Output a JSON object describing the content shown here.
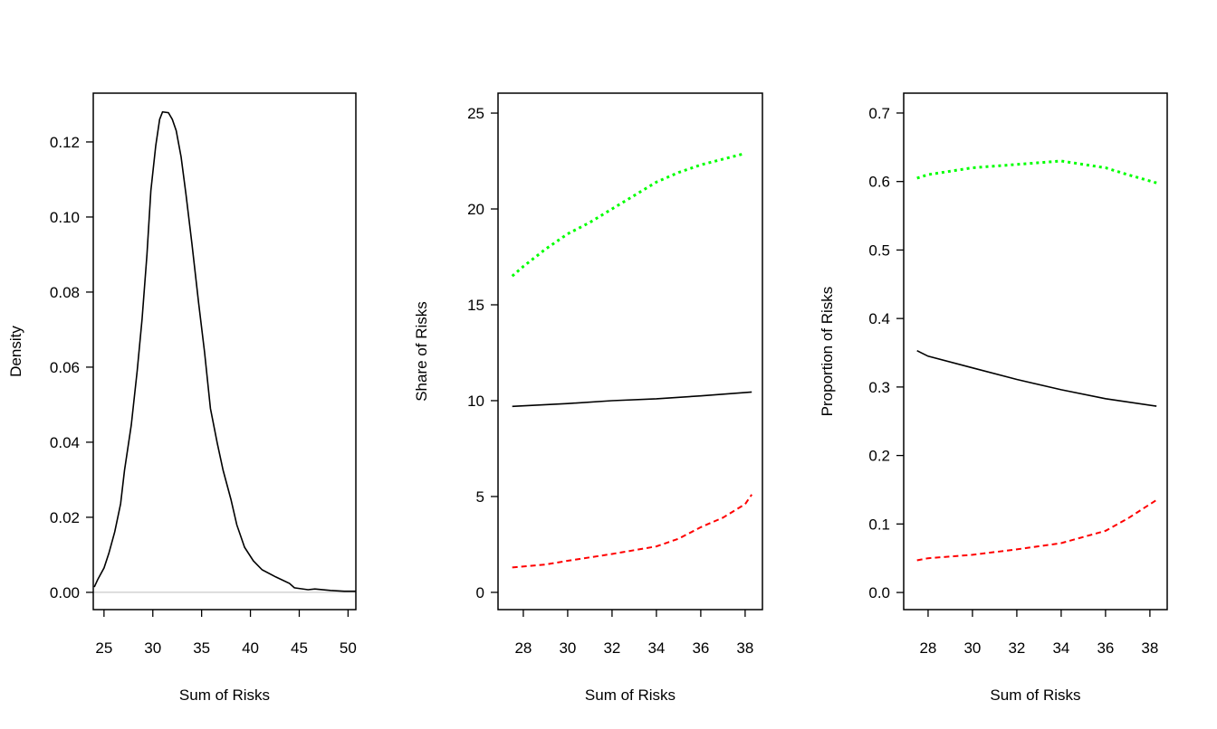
{
  "chart_data": [
    {
      "type": "line",
      "xlabel": "Sum of Risks",
      "ylabel": "Density",
      "xlim": [
        23.9,
        50.8
      ],
      "ylim": [
        -0.0046,
        0.133
      ],
      "xticks": [
        25,
        30,
        35,
        40,
        45,
        50
      ],
      "yticks": [
        "0.00",
        "0.02",
        "0.04",
        "0.06",
        "0.08",
        "0.10",
        "0.12"
      ],
      "grid": false,
      "baseline": {
        "y": 0,
        "color": "#bebebe"
      },
      "series": [
        {
          "color": "#000000",
          "style": "solid",
          "x": [
            24.0,
            24.35,
            25.0,
            25.5,
            26.1,
            26.7,
            27.1,
            27.8,
            28.4,
            28.9,
            29.4,
            29.8,
            30.3,
            30.7,
            31.0,
            31.6,
            32.0,
            32.4,
            32.9,
            33.4,
            34.0,
            34.7,
            35.3,
            35.9,
            36.6,
            37.2,
            38.0,
            38.6,
            39.4,
            40.3,
            41.2,
            42.6,
            44.0,
            44.5,
            45.9,
            46.6,
            48.2,
            49.6,
            50.8
          ],
          "y": [
            0.0014,
            0.0034,
            0.0065,
            0.0104,
            0.0161,
            0.0236,
            0.0325,
            0.0446,
            0.059,
            0.0728,
            0.09,
            0.107,
            0.119,
            0.126,
            0.128,
            0.1278,
            0.126,
            0.123,
            0.116,
            0.106,
            0.093,
            0.077,
            0.064,
            0.049,
            0.0398,
            0.0325,
            0.0248,
            0.018,
            0.012,
            0.0084,
            0.006,
            0.0041,
            0.0024,
            0.0012,
            0.0007,
            0.0009,
            0.0005,
            0.0003,
            0.0003
          ]
        }
      ]
    },
    {
      "type": "line",
      "xlabel": "Sum of Risks",
      "ylabel": "Share of Risks",
      "xlim": [
        26.86,
        38.78
      ],
      "ylim": [
        -0.9,
        26.04
      ],
      "xticks": [
        28,
        30,
        32,
        34,
        36,
        38
      ],
      "yticks": [
        "0",
        "5",
        "10",
        "15",
        "20",
        "25"
      ],
      "grid": false,
      "series": [
        {
          "color": "#00ff00",
          "style": "dotted",
          "x": [
            27.5,
            28,
            29,
            30,
            31,
            32,
            33,
            34,
            35,
            36,
            37,
            38
          ],
          "y": [
            16.5,
            17.0,
            17.9,
            18.7,
            19.3,
            20.0,
            20.7,
            21.4,
            21.9,
            22.3,
            22.6,
            22.9
          ]
        },
        {
          "color": "#000000",
          "style": "solid",
          "x": [
            27.5,
            30,
            32,
            34,
            36,
            38.3
          ],
          "y": [
            9.7,
            9.85,
            10.0,
            10.1,
            10.25,
            10.45
          ]
        },
        {
          "color": "#ff0000",
          "style": "dashed",
          "x": [
            27.5,
            29,
            30,
            32,
            34,
            35,
            36,
            37,
            38,
            38.3
          ],
          "y": [
            1.3,
            1.45,
            1.65,
            2.0,
            2.4,
            2.8,
            3.4,
            3.9,
            4.6,
            5.1
          ]
        }
      ]
    },
    {
      "type": "line",
      "xlabel": "Sum of Risks",
      "ylabel": "Proportion of Risks",
      "xlim": [
        26.9,
        38.78
      ],
      "ylim": [
        -0.025,
        0.729
      ],
      "xticks": [
        28,
        30,
        32,
        34,
        36,
        38
      ],
      "yticks": [
        "0.0",
        "0.1",
        "0.2",
        "0.3",
        "0.4",
        "0.5",
        "0.6",
        "0.7"
      ],
      "grid": false,
      "series": [
        {
          "color": "#00ff00",
          "style": "dotted",
          "x": [
            27.5,
            28,
            30,
            32,
            34,
            35,
            36,
            37,
            38.3
          ],
          "y": [
            0.605,
            0.61,
            0.62,
            0.625,
            0.63,
            0.625,
            0.62,
            0.61,
            0.598
          ]
        },
        {
          "color": "#000000",
          "style": "solid",
          "x": [
            27.5,
            28,
            30,
            32,
            34,
            36,
            38.3
          ],
          "y": [
            0.353,
            0.345,
            0.328,
            0.311,
            0.296,
            0.283,
            0.272
          ]
        },
        {
          "color": "#ff0000",
          "style": "dashed",
          "x": [
            27.5,
            28,
            30,
            32,
            34,
            36,
            37,
            38.3
          ],
          "y": [
            0.047,
            0.05,
            0.055,
            0.063,
            0.072,
            0.09,
            0.108,
            0.135
          ]
        }
      ]
    }
  ]
}
